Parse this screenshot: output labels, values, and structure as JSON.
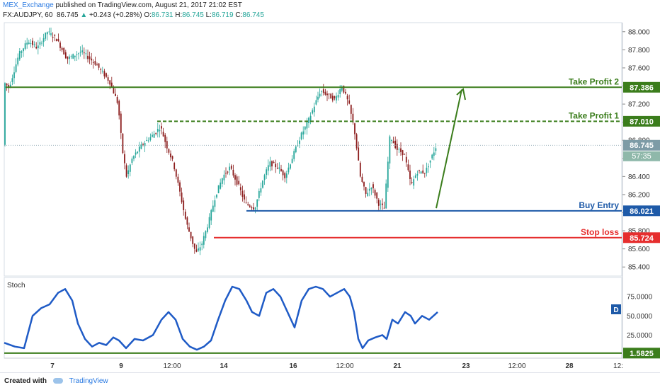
{
  "header": {
    "publisher": "MEX_Exchange",
    "published_text": "published on TradingView.com, August 21, 2017 21:02 EST",
    "symbol": "FX:AUDJPY, 60",
    "last": "86.745",
    "change": "+0.243 (+0.28%)",
    "open_label": "O:",
    "open": "86.731",
    "high_label": "H:",
    "high": "86.745",
    "low_label": "L:",
    "low": "86.719",
    "close_label": "C:",
    "close": "86.745"
  },
  "footer": {
    "created_with": "Created with",
    "brand": "TradingView"
  },
  "colors": {
    "up": "#26a69a",
    "down": "#8b1c1c",
    "take_profit": "#3b7d1c",
    "buy": "#1e5aa8",
    "stop": "#e62e2e",
    "stoch": "#1f5bc6",
    "label_grey": "#7d9ba6"
  },
  "chart_data": [
    {
      "type": "candlestick",
      "title": "",
      "ylim": [
        85.3,
        88.1
      ],
      "y_ticks": [
        "88.000",
        "87.800",
        "87.600",
        "87.400",
        "87.200",
        "87.000",
        "86.800",
        "86.600",
        "86.400",
        "86.200",
        "86.000",
        "85.800",
        "85.600",
        "85.400"
      ],
      "x_ticks": [
        "7",
        "9",
        "12:00",
        "14",
        "16",
        "12:00",
        "21",
        "23",
        "12:00",
        "28",
        "12:"
      ],
      "price_points": [
        [
          0,
          87.45
        ],
        [
          8,
          87.38
        ],
        [
          22,
          87.75
        ],
        [
          35,
          87.9
        ],
        [
          48,
          87.82
        ],
        [
          62,
          88.0
        ],
        [
          75,
          87.92
        ],
        [
          90,
          87.7
        ],
        [
          110,
          87.78
        ],
        [
          130,
          87.65
        ],
        [
          150,
          87.45
        ],
        [
          162,
          87.2
        ],
        [
          168,
          86.7
        ],
        [
          174,
          86.4
        ],
        [
          182,
          86.6
        ],
        [
          196,
          86.75
        ],
        [
          210,
          86.85
        ],
        [
          222,
          86.95
        ],
        [
          230,
          86.75
        ],
        [
          240,
          86.55
        ],
        [
          250,
          86.2
        ],
        [
          258,
          85.9
        ],
        [
          266,
          85.7
        ],
        [
          272,
          85.55
        ],
        [
          280,
          85.65
        ],
        [
          290,
          85.9
        ],
        [
          300,
          86.2
        ],
        [
          310,
          86.4
        ],
        [
          320,
          86.5
        ],
        [
          332,
          86.3
        ],
        [
          342,
          86.1
        ],
        [
          355,
          86.05
        ],
        [
          366,
          86.35
        ],
        [
          376,
          86.55
        ],
        [
          388,
          86.5
        ],
        [
          398,
          86.4
        ],
        [
          410,
          86.65
        ],
        [
          420,
          86.85
        ],
        [
          430,
          87.0
        ],
        [
          440,
          87.2
        ],
        [
          448,
          87.35
        ],
        [
          458,
          87.3
        ],
        [
          468,
          87.25
        ],
        [
          478,
          87.4
        ],
        [
          488,
          87.2
        ],
        [
          496,
          86.9
        ],
        [
          504,
          86.4
        ],
        [
          512,
          86.2
        ],
        [
          520,
          86.3
        ],
        [
          530,
          86.1
        ],
        [
          538,
          86.05
        ],
        [
          546,
          86.85
        ],
        [
          556,
          86.7
        ],
        [
          566,
          86.65
        ],
        [
          576,
          86.3
        ],
        [
          584,
          86.45
        ],
        [
          596,
          86.45
        ],
        [
          604,
          86.6
        ],
        [
          612,
          86.75
        ]
      ],
      "last_price": 86.745,
      "levels": [
        {
          "label": "Take Profit 2",
          "value": 87.386,
          "value_label": "87.386",
          "style": "solid",
          "color": "#3b7d1c"
        },
        {
          "label": "Take Profit 1",
          "value": 87.01,
          "value_label": "87.010",
          "style": "dashed",
          "color": "#3b7d1c"
        },
        {
          "label": "Buy Entry",
          "value": 86.021,
          "value_label": "86.021",
          "style": "solid",
          "color": "#1e5aa8"
        },
        {
          "label": "Stop loss",
          "value": 85.724,
          "value_label": "85.724",
          "style": "solid",
          "color": "#e62e2e"
        }
      ],
      "last_price_label": "86.745",
      "countdown_label": "57:35"
    },
    {
      "type": "line",
      "title": "Stoch",
      "ylim": [
        -5,
        100
      ],
      "y_ticks": [
        "75.0000",
        "50.0000",
        "25.0000"
      ],
      "series": [
        {
          "values": [
            [
              0,
              15
            ],
            [
              15,
              10
            ],
            [
              28,
              8
            ],
            [
              40,
              50
            ],
            [
              52,
              60
            ],
            [
              64,
              65
            ],
            [
              76,
              80
            ],
            [
              86,
              85
            ],
            [
              96,
              70
            ],
            [
              104,
              40
            ],
            [
              114,
              20
            ],
            [
              124,
              10
            ],
            [
              134,
              15
            ],
            [
              144,
              12
            ],
            [
              154,
              22
            ],
            [
              162,
              18
            ],
            [
              172,
              8
            ],
            [
              184,
              20
            ],
            [
              196,
              18
            ],
            [
              210,
              25
            ],
            [
              222,
              45
            ],
            [
              232,
              55
            ],
            [
              242,
              45
            ],
            [
              252,
              20
            ],
            [
              262,
              10
            ],
            [
              272,
              6
            ],
            [
              282,
              10
            ],
            [
              292,
              18
            ],
            [
              302,
              45
            ],
            [
              312,
              70
            ],
            [
              322,
              88
            ],
            [
              332,
              85
            ],
            [
              342,
              70
            ],
            [
              350,
              55
            ],
            [
              360,
              50
            ],
            [
              370,
              80
            ],
            [
              380,
              85
            ],
            [
              390,
              75
            ],
            [
              400,
              55
            ],
            [
              410,
              35
            ],
            [
              420,
              70
            ],
            [
              430,
              85
            ],
            [
              440,
              88
            ],
            [
              450,
              85
            ],
            [
              460,
              75
            ],
            [
              470,
              80
            ],
            [
              480,
              85
            ],
            [
              488,
              75
            ],
            [
              494,
              55
            ],
            [
              500,
              20
            ],
            [
              506,
              8
            ],
            [
              514,
              18
            ],
            [
              524,
              22
            ],
            [
              534,
              25
            ],
            [
              540,
              20
            ],
            [
              548,
              45
            ],
            [
              556,
              40
            ],
            [
              566,
              55
            ],
            [
              574,
              50
            ],
            [
              580,
              40
            ],
            [
              590,
              50
            ],
            [
              600,
              45
            ],
            [
              612,
              55
            ]
          ]
        }
      ],
      "ref_line_value": 1.5825,
      "ref_label": "1.5825",
      "badge": "D"
    }
  ]
}
